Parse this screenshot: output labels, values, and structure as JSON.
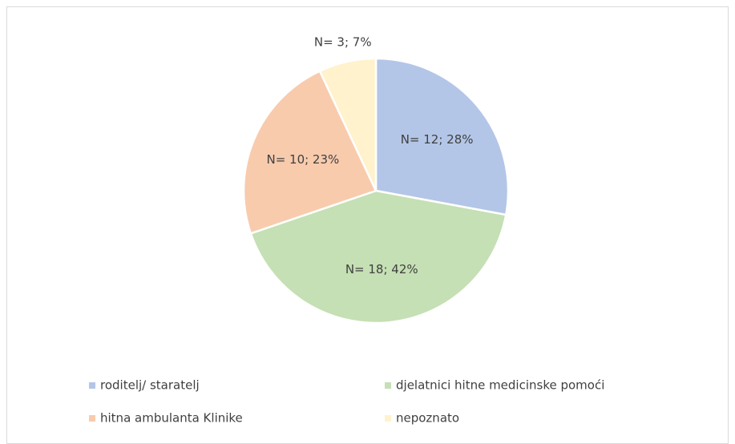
{
  "chart_data": {
    "type": "pie",
    "categories": [
      "roditelj/ staratelj",
      "djelatnici hitne medicinske pomoći",
      "hitna ambulanta Klinike",
      "nepoznato"
    ],
    "values": [
      12,
      18,
      10,
      3
    ],
    "value_labels": [
      "N= 12; 28%",
      "N= 18; 42%",
      "N= 10; 23%",
      "N= 3; 7%"
    ],
    "colors": [
      "#b4c6e7",
      "#c5e0b4",
      "#f8cbad",
      "#fff2cc"
    ],
    "legend": "bottom"
  }
}
